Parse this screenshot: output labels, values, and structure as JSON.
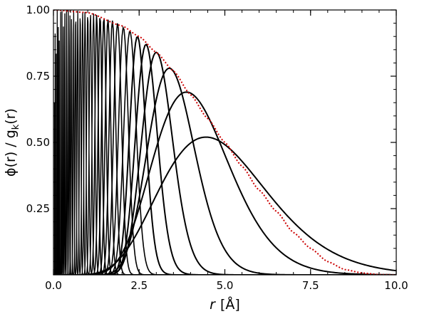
{
  "chart_data": {
    "type": "line",
    "xlabel": {
      "symbol": "r",
      "unit": "[Å]"
    },
    "ylabel": {
      "text": "ϕ(r) / g",
      "subscript": "k",
      "suffix": "(r)"
    },
    "xlim": [
      0.0,
      10.0
    ],
    "ylim": [
      0.0,
      1.0
    ],
    "x_ticks": [
      0,
      2.5,
      5,
      7.5,
      10
    ],
    "x_tick_labels": [
      "0.0",
      "2.5",
      "5.0",
      "7.5",
      "10.0"
    ],
    "y_ticks": [
      0.25,
      0.5,
      0.75,
      1.0
    ],
    "y_tick_labels": [
      "0.25",
      "0.50",
      "0.75",
      "1.00"
    ],
    "grid": false,
    "legend": "none",
    "envelope": {
      "style": "dotted",
      "color": "#cc0000",
      "points": [
        [
          0,
          1.0
        ],
        [
          1,
          0.99
        ],
        [
          2,
          0.94
        ],
        [
          2.5,
          0.9
        ],
        [
          3,
          0.84
        ],
        [
          3.5,
          0.77
        ],
        [
          4,
          0.68
        ],
        [
          4.5,
          0.59
        ],
        [
          5,
          0.5
        ],
        [
          5.5,
          0.41
        ],
        [
          6,
          0.32
        ],
        [
          6.5,
          0.24
        ],
        [
          7,
          0.16
        ],
        [
          7.5,
          0.1
        ],
        [
          8,
          0.05
        ],
        [
          8.5,
          0.02
        ],
        [
          9,
          0.007
        ],
        [
          9.5,
          0.001
        ],
        [
          10,
          0.0
        ]
      ]
    },
    "basis_curves": {
      "color": "#000000",
      "peaks": [
        {
          "x": 4.45,
          "y": 0.52
        },
        {
          "x": 3.88,
          "y": 0.69
        },
        {
          "x": 3.38,
          "y": 0.78
        },
        {
          "x": 3.0,
          "y": 0.84
        },
        {
          "x": 2.7,
          "y": 0.87
        },
        {
          "x": 2.45,
          "y": 0.9
        },
        {
          "x": 2.23,
          "y": 0.92
        },
        {
          "x": 2.04,
          "y": 0.935
        },
        {
          "x": 1.87,
          "y": 0.95
        },
        {
          "x": 1.72,
          "y": 0.96
        },
        {
          "x": 1.59,
          "y": 0.965
        },
        {
          "x": 1.47,
          "y": 0.972
        },
        {
          "x": 1.36,
          "y": 0.978
        },
        {
          "x": 1.26,
          "y": 0.983
        },
        {
          "x": 1.17,
          "y": 0.987
        },
        {
          "x": 1.08,
          "y": 0.99
        },
        {
          "x": 1.0,
          "y": 0.992
        },
        {
          "x": 0.92,
          "y": 0.994
        },
        {
          "x": 0.85,
          "y": 0.995
        },
        {
          "x": 0.78,
          "y": 0.996
        },
        {
          "x": 0.71,
          "y": 0.997
        },
        {
          "x": 0.65,
          "y": 0.998
        },
        {
          "x": 0.59,
          "y": 0.998
        },
        {
          "x": 0.53,
          "y": 0.999
        },
        {
          "x": 0.48,
          "y": 0.999
        },
        {
          "x": 0.43,
          "y": 0.999
        },
        {
          "x": 0.38,
          "y": 1.0
        },
        {
          "x": 0.33,
          "y": 1.0
        },
        {
          "x": 0.29,
          "y": 1.0
        },
        {
          "x": 0.25,
          "y": 1.0
        },
        {
          "x": 0.21,
          "y": 1.0
        },
        {
          "x": 0.17,
          "y": 1.0
        },
        {
          "x": 0.14,
          "y": 1.0
        },
        {
          "x": 0.11,
          "y": 1.0
        },
        {
          "x": 0.08,
          "y": 1.0
        },
        {
          "x": 0.05,
          "y": 1.0
        },
        {
          "x": 0.03,
          "y": 1.0
        }
      ]
    }
  }
}
